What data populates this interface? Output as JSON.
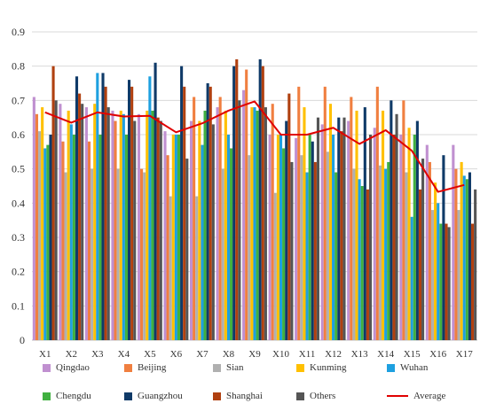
{
  "chart_data": {
    "type": "bar",
    "title": "",
    "xlabel": "",
    "ylabel": "",
    "ylim": [
      0,
      0.9
    ],
    "yticks": [
      "0",
      "0.1",
      "0.2",
      "0.3",
      "0.4",
      "0.5",
      "0.6",
      "0.7",
      "0.8",
      "0.9"
    ],
    "grid": true,
    "legend_position": "bottom",
    "categories": [
      "X1",
      "X2",
      "X3",
      "X4",
      "X5",
      "X6",
      "X7",
      "X8",
      "X9",
      "X10",
      "X11",
      "X12",
      "X13",
      "X14",
      "X15",
      "X16",
      "X17"
    ],
    "series": [
      {
        "name": "Qingdao",
        "color": "#c090d0",
        "values": [
          0.71,
          0.69,
          0.68,
          0.67,
          0.66,
          0.61,
          0.64,
          0.68,
          0.73,
          0.6,
          0.59,
          0.63,
          0.64,
          0.62,
          0.6,
          0.57,
          0.57
        ]
      },
      {
        "name": "Beijing",
        "color": "#f07f40",
        "values": [
          0.66,
          0.58,
          0.58,
          0.64,
          0.5,
          0.54,
          0.71,
          0.71,
          0.79,
          0.69,
          0.74,
          0.74,
          0.71,
          0.74,
          0.7,
          0.52,
          0.5
        ]
      },
      {
        "name": "Sian",
        "color": "#b0b0b0",
        "values": [
          0.61,
          0.49,
          0.5,
          0.5,
          0.49,
          0.42,
          0.42,
          0.5,
          0.54,
          0.43,
          0.54,
          0.55,
          0.5,
          0.51,
          0.49,
          0.38,
          0.38
        ]
      },
      {
        "name": "Kunming",
        "color": "#ffc000",
        "values": [
          0.68,
          0.67,
          0.69,
          0.67,
          0.67,
          0.6,
          0.64,
          0.67,
          0.68,
          0.6,
          0.68,
          0.69,
          0.67,
          0.67,
          0.62,
          0.46,
          0.52
        ]
      },
      {
        "name": "Wuhan",
        "color": "#1ea0e0",
        "values": [
          0.56,
          0.63,
          0.78,
          0.66,
          0.77,
          0.6,
          0.57,
          0.6,
          0.68,
          0.6,
          0.49,
          0.6,
          0.47,
          0.5,
          0.36,
          0.4,
          0.48
        ]
      },
      {
        "name": "Chengdu",
        "color": "#40b040",
        "values": [
          0.57,
          0.6,
          0.6,
          0.6,
          0.67,
          0.6,
          0.67,
          0.56,
          0.67,
          0.56,
          0.6,
          0.49,
          0.45,
          0.52,
          0.6,
          0.34,
          0.47
        ]
      },
      {
        "name": "Guangzhou",
        "color": "#0f3a68",
        "values": [
          0.6,
          0.77,
          0.78,
          0.76,
          0.81,
          0.8,
          0.75,
          0.8,
          0.82,
          0.64,
          0.58,
          0.65,
          0.68,
          0.7,
          0.64,
          0.54,
          0.49
        ]
      },
      {
        "name": "Shanghai",
        "color": "#b04010",
        "values": [
          0.8,
          0.72,
          0.74,
          0.74,
          0.65,
          0.74,
          0.74,
          0.82,
          0.8,
          0.72,
          0.52,
          0.61,
          0.44,
          0.6,
          0.44,
          0.34,
          0.34
        ]
      },
      {
        "name": "Others",
        "color": "#555555",
        "values": [
          0.7,
          0.69,
          0.68,
          0.64,
          0.64,
          0.53,
          0.63,
          0.7,
          0.68,
          0.52,
          0.65,
          0.65,
          0.6,
          0.66,
          0.53,
          0.33,
          0.44
        ]
      }
    ],
    "line_series": {
      "name": "Average",
      "color": "#e00000",
      "values": [
        0.665,
        0.635,
        0.665,
        0.653,
        0.655,
        0.607,
        0.633,
        0.67,
        0.697,
        0.6,
        0.6,
        0.62,
        0.573,
        0.613,
        0.553,
        0.433,
        0.453
      ]
    }
  }
}
